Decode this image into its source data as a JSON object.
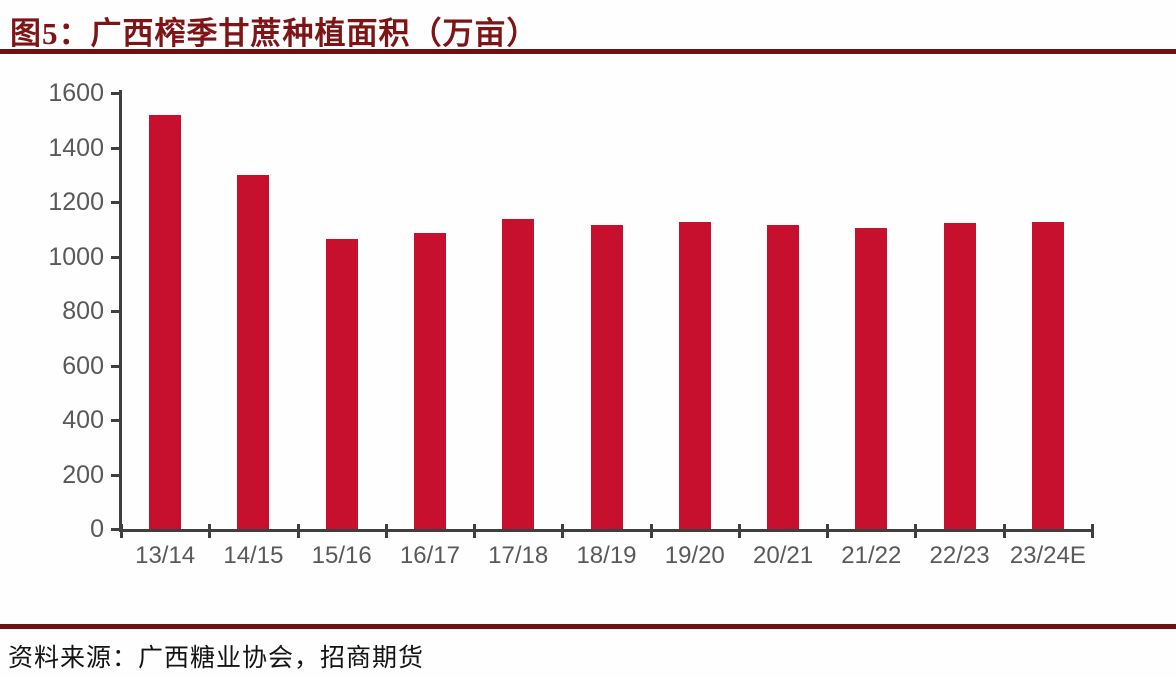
{
  "header": {
    "figure_label": "图5：",
    "title": "广西榨季甘蔗种植面积（万亩）"
  },
  "source": {
    "text": "资料来源：广西糖业协会，招商期货"
  },
  "colors": {
    "bar": "#C70F2E",
    "title_text": "#7E1416",
    "rule": "#6E1113",
    "axis_line": "#3F3F3F",
    "tick_label": "#595959"
  },
  "chart_data": {
    "type": "bar",
    "title": "广西榨季甘蔗种植面积（万亩）",
    "categories": [
      "13/14",
      "14/15",
      "15/16",
      "16/17",
      "17/18",
      "18/19",
      "19/20",
      "20/21",
      "21/22",
      "22/23",
      "23/24E"
    ],
    "values": [
      1520,
      1299,
      1064,
      1086,
      1138,
      1116,
      1127,
      1117,
      1103,
      1122,
      1126
    ],
    "unit": "万亩",
    "xlabel": "",
    "ylabel": "",
    "ylim": [
      0,
      1600
    ],
    "yticks": [
      0,
      200,
      400,
      600,
      800,
      1000,
      1200,
      1400,
      1600
    ],
    "grid": false,
    "legend_position": "none",
    "bar_color": "#C70F2E"
  }
}
